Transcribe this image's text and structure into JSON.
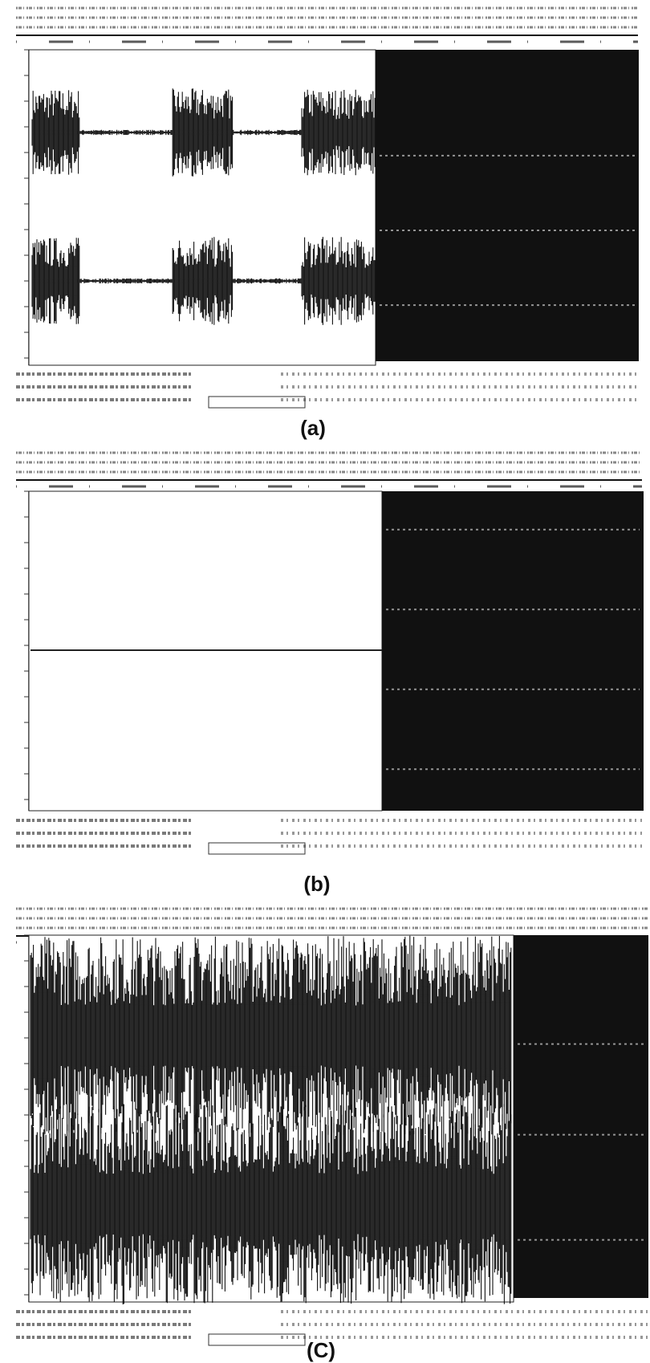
{
  "panels": [
    {
      "label": "(a)"
    },
    {
      "label": "(b)"
    },
    {
      "label": "(C)"
    }
  ]
}
